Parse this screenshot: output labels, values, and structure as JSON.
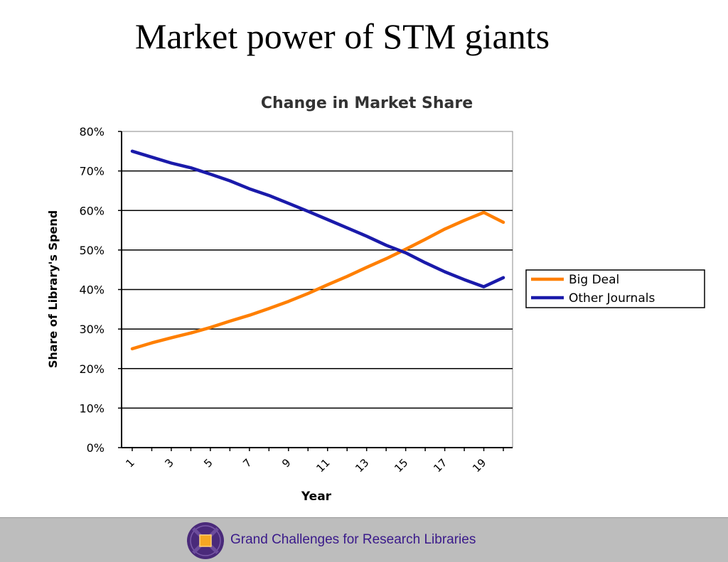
{
  "slide": {
    "title": "Market power of STM giants"
  },
  "footer": {
    "text": "Grand Challenges for Research Libraries",
    "logo_icon": "purple-emblem-icon",
    "background_color": "#bdbdbd",
    "text_color": "#3a1a8a"
  },
  "chart_data": {
    "type": "line",
    "title": "Change in Market Share",
    "xlabel": "Year",
    "ylabel": "Share of Library's Spend",
    "x": [
      1,
      2,
      3,
      4,
      5,
      6,
      7,
      8,
      9,
      10,
      11,
      12,
      13,
      14,
      15,
      16,
      17,
      18,
      19,
      20
    ],
    "x_tick_labels": [
      "1",
      "3",
      "5",
      "7",
      "9",
      "11",
      "13",
      "15",
      "17",
      "19"
    ],
    "y_tick_labels": [
      "0%",
      "10%",
      "20%",
      "30%",
      "40%",
      "50%",
      "60%",
      "70%",
      "80%"
    ],
    "ylim": [
      0,
      80
    ],
    "y_unit": "%",
    "grid": "horizontal",
    "legend_position": "right",
    "series": [
      {
        "name": "Big Deal",
        "color": "#ff7f00",
        "values": [
          25,
          26.5,
          27.8,
          29,
          30.4,
          32,
          33.5,
          35.2,
          37,
          39,
          41.2,
          43.3,
          45.6,
          47.8,
          50.2,
          52.7,
          55.3,
          57.5,
          59.5,
          57
        ]
      },
      {
        "name": "Other Journals",
        "color": "#1a1aaa",
        "values": [
          75,
          73.5,
          72,
          70.8,
          69.2,
          67.5,
          65.5,
          63.8,
          61.8,
          59.8,
          57.7,
          55.6,
          53.5,
          51.2,
          49.3,
          46.8,
          44.5,
          42.5,
          40.7,
          43
        ]
      }
    ]
  }
}
